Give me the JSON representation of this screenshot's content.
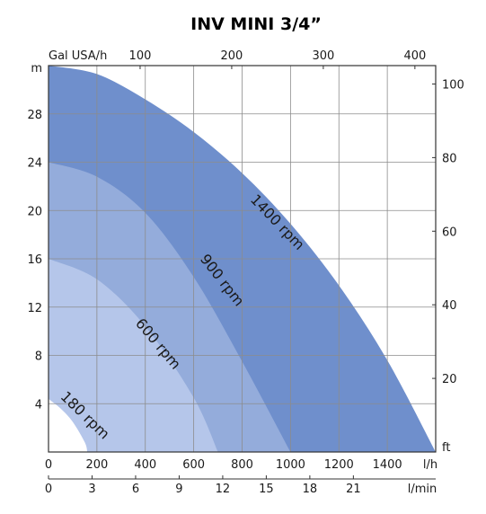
{
  "chart_data": {
    "type": "area",
    "title": "INV MINI 3/4”",
    "x_bottom": {
      "label": "l/h",
      "ticks": [
        "0",
        "200",
        "400",
        "600",
        "800",
        "1000",
        "1200",
        "1400"
      ],
      "range": [
        0,
        1600
      ]
    },
    "x_bottom2": {
      "label": "l/min",
      "ticks": [
        "0",
        "3",
        "6",
        "9",
        "12",
        "15",
        "18",
        "21"
      ],
      "range": [
        0,
        26.67
      ]
    },
    "x_top": {
      "label": "Gal USA/h",
      "ticks": [
        "100",
        "200",
        "300",
        "400"
      ],
      "range": [
        0,
        422.7
      ]
    },
    "y_left": {
      "label": "m",
      "ticks": [
        "4",
        "8",
        "12",
        "16",
        "20",
        "24",
        "28"
      ],
      "range": [
        0,
        32
      ]
    },
    "y_right": {
      "label": "ft",
      "ticks": [
        "20",
        "40",
        "60",
        "80",
        "100"
      ],
      "range": [
        0,
        105
      ]
    },
    "grid": true,
    "series": [
      {
        "name": "1400 rpm",
        "color": "#6f8fcc",
        "x": [
          0,
          200,
          400,
          600,
          800,
          1000,
          1200,
          1400,
          1600
        ],
        "y": [
          32,
          31.3,
          29.2,
          26.5,
          23.1,
          18.9,
          13.8,
          7.6,
          0
        ]
      },
      {
        "name": "900 rpm",
        "color": "#94acdb",
        "x": [
          0,
          200,
          400,
          600,
          800,
          1000
        ],
        "y": [
          24,
          22.8,
          19.8,
          14.5,
          7.5,
          0
        ]
      },
      {
        "name": "600 rpm",
        "color": "#b5c6ea",
        "x": [
          0,
          200,
          400,
          600,
          700
        ],
        "y": [
          16,
          14.3,
          10.4,
          4.5,
          0
        ]
      },
      {
        "name": "180 rpm",
        "color": "#ffffff",
        "x": [
          0,
          50,
          100,
          150,
          160
        ],
        "y": [
          4.4,
          3.6,
          2.5,
          0.8,
          0
        ]
      }
    ]
  }
}
